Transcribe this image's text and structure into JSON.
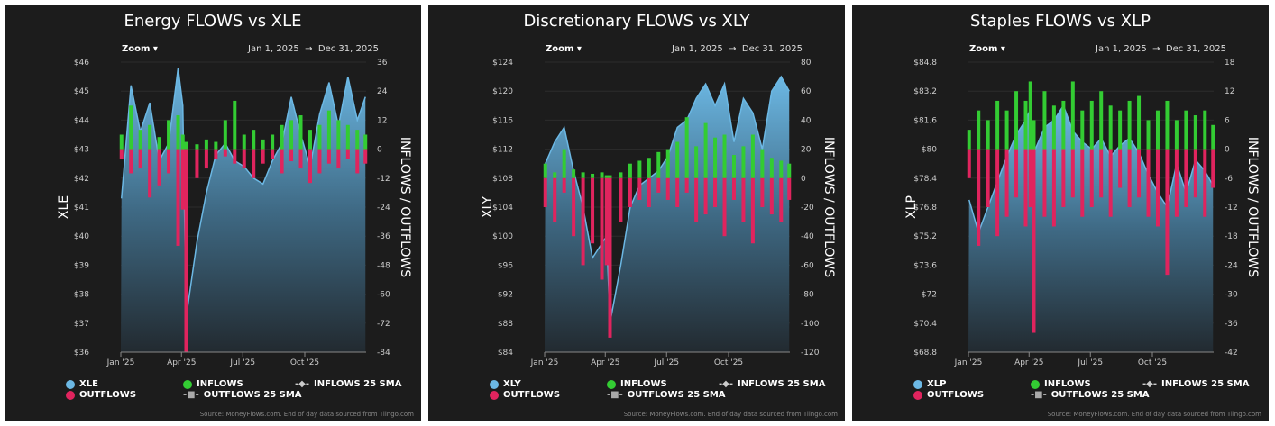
{
  "dates": [
    "2025-01-02",
    "2025-01-16",
    "2025-01-30",
    "2025-02-13",
    "2025-02-27",
    "2025-03-13",
    "2025-03-27",
    "2025-04-03",
    "2025-04-08",
    "2025-04-24",
    "2025-05-08",
    "2025-05-22",
    "2025-06-05",
    "2025-06-19",
    "2025-07-03",
    "2025-07-17",
    "2025-07-31",
    "2025-08-14",
    "2025-08-28",
    "2025-09-11",
    "2025-09-25",
    "2025-10-09",
    "2025-10-23",
    "2025-11-06",
    "2025-11-20",
    "2025-12-04",
    "2025-12-18",
    "2025-12-30"
  ],
  "zoom_label": "Zoom ▾",
  "date_from": "Jan 1, 2025",
  "date_arrow": "→",
  "date_to": "Dec 31, 2025",
  "x_ticks": [
    "Jan '25",
    "Apr '25",
    "Jul '25",
    "Oct '25"
  ],
  "legend": {
    "inflows": "INFLOWS",
    "outflows": "OUTFLOWS",
    "inflows_sma": "INFLOWS 25 SMA",
    "outflows_sma": "OUTFLOWS 25 SMA"
  },
  "source": "Source: MoneyFlows.com. End of day data sourced from Tiingo.com",
  "colors": {
    "price": "#6cb8e4",
    "inflows": "#33cc33",
    "outflows": "#e0245e",
    "background": "#1c1c1c"
  },
  "chart_data": [
    {
      "type": "area+bar",
      "title": "Energy FLOWS vs XLE",
      "ticker": "XLE",
      "ylabel": "XLE",
      "y2label": "INFLOWS / OUTFLOWS",
      "ylim": [
        36,
        46
      ],
      "yticks": [
        "$36",
        "$37",
        "$38",
        "$39",
        "$40",
        "$41",
        "$42",
        "$43",
        "$44",
        "$45",
        "$46"
      ],
      "y2lim": [
        -84,
        36
      ],
      "y2ticks": [
        "-84",
        "-72",
        "-60",
        "-48",
        "-36",
        "-24",
        "-12",
        "0",
        "12",
        "24",
        "36"
      ],
      "price": [
        41.3,
        45.2,
        43.6,
        44.6,
        42.6,
        43.2,
        45.8,
        44.5,
        37.2,
        39.8,
        41.5,
        42.8,
        43.2,
        42.6,
        42.4,
        42.0,
        41.8,
        42.6,
        43.2,
        44.8,
        43.5,
        42.4,
        44.2,
        45.3,
        43.8,
        45.5,
        44.0,
        44.8
      ],
      "inflows": [
        6,
        18,
        8,
        10,
        5,
        12,
        14,
        6,
        3,
        2,
        4,
        3,
        12,
        20,
        6,
        8,
        4,
        6,
        10,
        12,
        14,
        8,
        10,
        16,
        12,
        10,
        8,
        6
      ],
      "outflows": [
        -4,
        -10,
        -8,
        -20,
        -15,
        -10,
        -40,
        -25,
        -84,
        -12,
        -8,
        -4,
        -3,
        -6,
        -8,
        -12,
        -6,
        -4,
        -10,
        -5,
        -8,
        -14,
        -10,
        -6,
        -8,
        -4,
        -10,
        -6
      ]
    },
    {
      "type": "area+bar",
      "title": "Discretionary FLOWS vs XLY",
      "ticker": "XLY",
      "ylabel": "XLY",
      "y2label": "INFLOWS / OUTFLOWS",
      "ylim": [
        84,
        124
      ],
      "yticks": [
        "$84",
        "$88",
        "$92",
        "$96",
        "$100",
        "$104",
        "$108",
        "$112",
        "$116",
        "$120",
        "$124"
      ],
      "y2lim": [
        -120,
        80
      ],
      "y2ticks": [
        "-120",
        "-100",
        "-80",
        "-60",
        "-40",
        "-20",
        "0",
        "20",
        "40",
        "60",
        "80"
      ],
      "price": [
        110,
        113,
        115,
        109,
        104,
        97,
        99,
        100,
        88,
        96,
        104,
        107,
        108,
        109,
        111,
        115,
        116,
        119,
        121,
        118,
        121,
        113,
        119,
        117,
        112,
        120,
        122,
        120
      ],
      "inflows": [
        10,
        4,
        20,
        6,
        4,
        3,
        4,
        2,
        2,
        4,
        10,
        12,
        14,
        18,
        20,
        25,
        42,
        22,
        38,
        28,
        30,
        16,
        22,
        30,
        20,
        14,
        12,
        10
      ],
      "outflows": [
        -20,
        -30,
        -10,
        -40,
        -60,
        -45,
        -70,
        -60,
        -110,
        -30,
        -20,
        -15,
        -20,
        -10,
        -15,
        -20,
        -10,
        -30,
        -25,
        -20,
        -40,
        -15,
        -30,
        -45,
        -20,
        -25,
        -30,
        -15
      ]
    },
    {
      "type": "area+bar",
      "title": "Staples FLOWS vs XLP",
      "ticker": "XLP",
      "ylabel": "XLP",
      "y2label": "INFLOWS / OUTFLOWS",
      "ylim": [
        68.8,
        84.8
      ],
      "yticks": [
        "$68.8",
        "$70.4",
        "$72",
        "$73.6",
        "$75.2",
        "$76.8",
        "$78.4",
        "$80",
        "$81.6",
        "$83.2",
        "$84.8"
      ],
      "y2lim": [
        -42,
        18
      ],
      "y2ticks": [
        "-42",
        "-36",
        "-30",
        "-24",
        "-18",
        "-12",
        "-6",
        "0",
        "6",
        "12",
        "18"
      ],
      "price": [
        77.2,
        75.4,
        76.8,
        78.2,
        79.6,
        80.8,
        81.6,
        82.2,
        79.8,
        81.2,
        81.6,
        82.4,
        81.0,
        80.4,
        80.0,
        80.6,
        79.6,
        80.2,
        80.6,
        79.8,
        78.6,
        77.6,
        76.8,
        79.2,
        77.6,
        79.4,
        78.8,
        78.0
      ],
      "inflows": [
        4,
        8,
        6,
        10,
        8,
        12,
        10,
        14,
        6,
        12,
        9,
        10,
        14,
        8,
        10,
        12,
        9,
        8,
        10,
        11,
        6,
        8,
        10,
        6,
        8,
        7,
        8,
        5
      ],
      "outflows": [
        -6,
        -20,
        -12,
        -18,
        -14,
        -10,
        -16,
        -12,
        -38,
        -14,
        -16,
        -12,
        -10,
        -14,
        -12,
        -10,
        -14,
        -8,
        -12,
        -10,
        -14,
        -16,
        -26,
        -14,
        -12,
        -10,
        -14,
        -8
      ]
    }
  ]
}
